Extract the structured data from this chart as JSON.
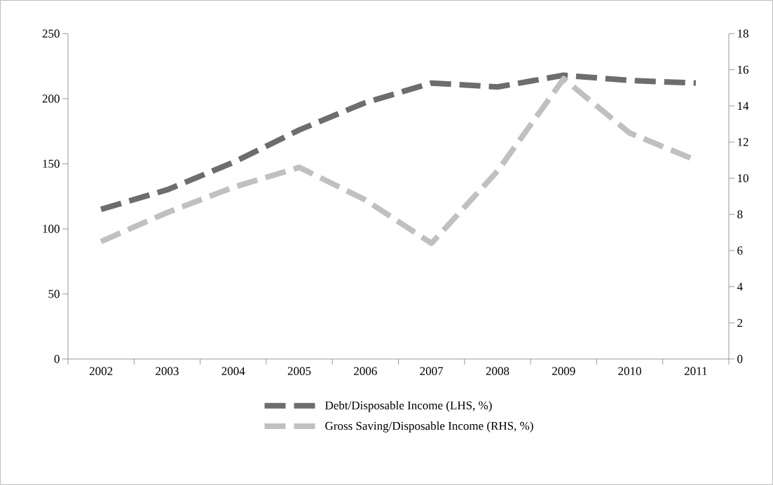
{
  "chart_data": {
    "type": "line",
    "categories": [
      "2002",
      "2003",
      "2004",
      "2005",
      "2006",
      "2007",
      "2008",
      "2009",
      "2010",
      "2011"
    ],
    "series": [
      {
        "name": "Debt/Disposable Income (LHS, %)",
        "color": "#6d6d6d",
        "axis": "y",
        "values": [
          115,
          130,
          151,
          176,
          197,
          212,
          209,
          218,
          214,
          212
        ]
      },
      {
        "name": "Gross Saving/Disposable Income (RHS, %)",
        "color": "#c0c0c0",
        "axis": "y2",
        "values": [
          6.5,
          8.1,
          9.5,
          10.6,
          8.8,
          6.4,
          10.4,
          15.5,
          12.5,
          11.0
        ]
      }
    ],
    "ylim": [
      0,
      250
    ],
    "yticks": [
      0,
      50,
      100,
      150,
      200,
      250
    ],
    "y2lim": [
      0,
      18
    ],
    "y2ticks": [
      0,
      2,
      4,
      6,
      8,
      10,
      12,
      14,
      16,
      18
    ],
    "line_style": "dashed",
    "legend": "bottom",
    "grid": false
  }
}
